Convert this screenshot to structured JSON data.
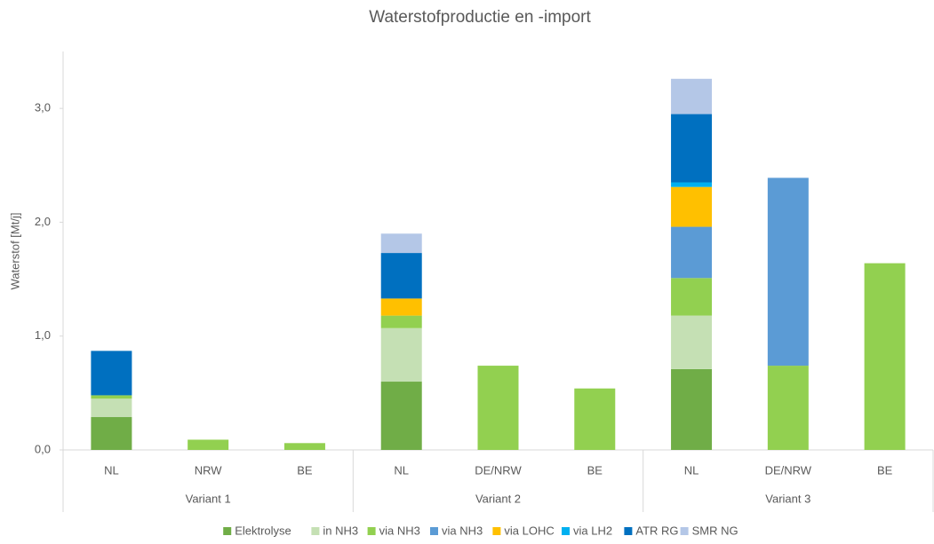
{
  "chart_data": {
    "type": "stacked_bar",
    "title": "Waterstofproductie en -import",
    "y_label": "Waterstof [Mt/j]",
    "categories": [
      "NL",
      "NRW",
      "BE",
      "NL",
      "DE/NRW",
      "BE",
      "NL",
      "DE/NRW",
      "BE"
    ],
    "groups": [
      {
        "name": "Variant 1",
        "size": 3
      },
      {
        "name": "Variant 2",
        "size": 3
      },
      {
        "name": "Variant 3",
        "size": 3
      }
    ],
    "series": [
      {
        "name": "Elektrolyse",
        "color": "#70ad47",
        "values": [
          0.29,
          null,
          null,
          0.6,
          null,
          null,
          0.71,
          null,
          null
        ]
      },
      {
        "name": "in NH3",
        "color": "#c5e0b4",
        "values": [
          0.16,
          null,
          null,
          0.47,
          null,
          null,
          0.47,
          null,
          null
        ]
      },
      {
        "name": "via NH3",
        "color": "#92d050",
        "values": [
          0.03,
          0.09,
          0.06,
          0.11,
          0.74,
          0.54,
          0.33,
          0.74,
          1.64
        ]
      },
      {
        "name": "via NH3",
        "color": "#5b9bd5",
        "values": [
          null,
          null,
          null,
          null,
          null,
          null,
          0.45,
          1.65,
          null
        ]
      },
      {
        "name": "via LOHC",
        "color": "#ffc000",
        "values": [
          null,
          null,
          null,
          0.15,
          null,
          null,
          0.35,
          null,
          null
        ]
      },
      {
        "name": "via LH2",
        "color": "#00b0f0",
        "values": [
          null,
          null,
          null,
          null,
          null,
          null,
          0.04,
          null,
          null
        ]
      },
      {
        "name": "ATR RG",
        "color": "#0070c0",
        "values": [
          0.39,
          null,
          null,
          0.4,
          null,
          null,
          0.6,
          null,
          null
        ]
      },
      {
        "name": "SMR NG",
        "color": "#b4c7e7",
        "values": [
          null,
          null,
          null,
          0.17,
          null,
          null,
          0.31,
          null,
          null
        ]
      }
    ],
    "ylim": [
      0,
      3.5
    ],
    "yticks": [
      {
        "value": 0,
        "label": "0,0"
      },
      {
        "value": 1,
        "label": "1,0"
      },
      {
        "value": 2,
        "label": "2,0"
      },
      {
        "value": 3,
        "label": "3,0"
      }
    ],
    "grid": false,
    "legend": "bottom"
  }
}
